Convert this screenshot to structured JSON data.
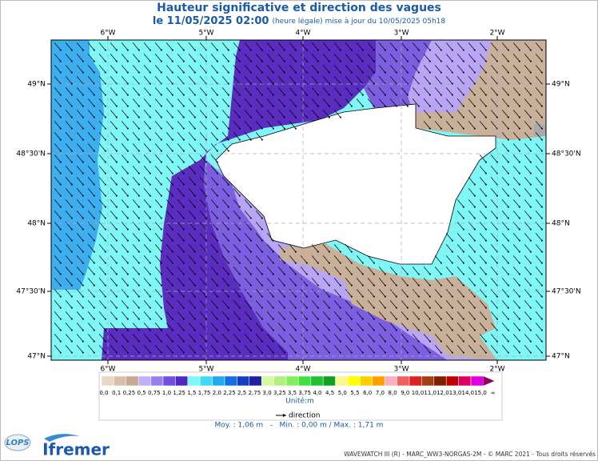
{
  "header": {
    "title": "Hauteur significative et direction des vagues",
    "date": "le 11/05/2025 02:00",
    "update_note": "(heure légale) mise à jour du 10/05/2025 05h18"
  },
  "map": {
    "longitude_labels": [
      "6°W",
      "5°W",
      "4°W",
      "3°W",
      "2°W"
    ],
    "latitude_labels": [
      "49°N",
      "48°30'N",
      "48°N",
      "47°30'N",
      "47°N"
    ]
  },
  "legend": {
    "scale_labels": [
      "0,0",
      "0,1",
      "0,25",
      "0,5",
      "0,75",
      "1,0",
      "1,25",
      "1,5",
      "1,75",
      "2,0",
      "2,25",
      "2,5",
      "2,75",
      "3,0",
      "3,25",
      "3,5",
      "3,75",
      "4,0",
      "4,5",
      "5,0",
      "5,5",
      "6,0",
      "7,0",
      "8,0",
      "9,0",
      "10,0",
      "11,0",
      "12,0",
      "13,0",
      "14,0",
      "15,0",
      "∞"
    ],
    "colors": [
      "#e8d8c8",
      "#d8c0a8",
      "#c8a890",
      "#c0b0f8",
      "#9880f0",
      "#7050e0",
      "#5028c0",
      "#80f8f8",
      "#40d8f8",
      "#20a8f0",
      "#1070e0",
      "#1040c0",
      "#2020a0",
      "#d8f8a0",
      "#b0f080",
      "#80f060",
      "#40e040",
      "#20c030",
      "#10a020",
      "#f8f890",
      "#ffff00",
      "#ffd000",
      "#ffa000",
      "#f8b0c0",
      "#f06060",
      "#e02020",
      "#a04010",
      "#802000",
      "#c00000",
      "#e00060",
      "#e000e0",
      "#900060"
    ],
    "unit": "Unité:m",
    "direction_label": "direction"
  },
  "stats": "Moy. : 1,06 m   -   Min. : 0,00 m / Max. : 1,71 m",
  "footer": {
    "credits": "WAVEWATCH III (R) - MARC_WW3-NORGAS-2M - © MARC 2021 - Tous droits réservés",
    "logos": [
      "LOPS",
      "Ifremer"
    ]
  }
}
